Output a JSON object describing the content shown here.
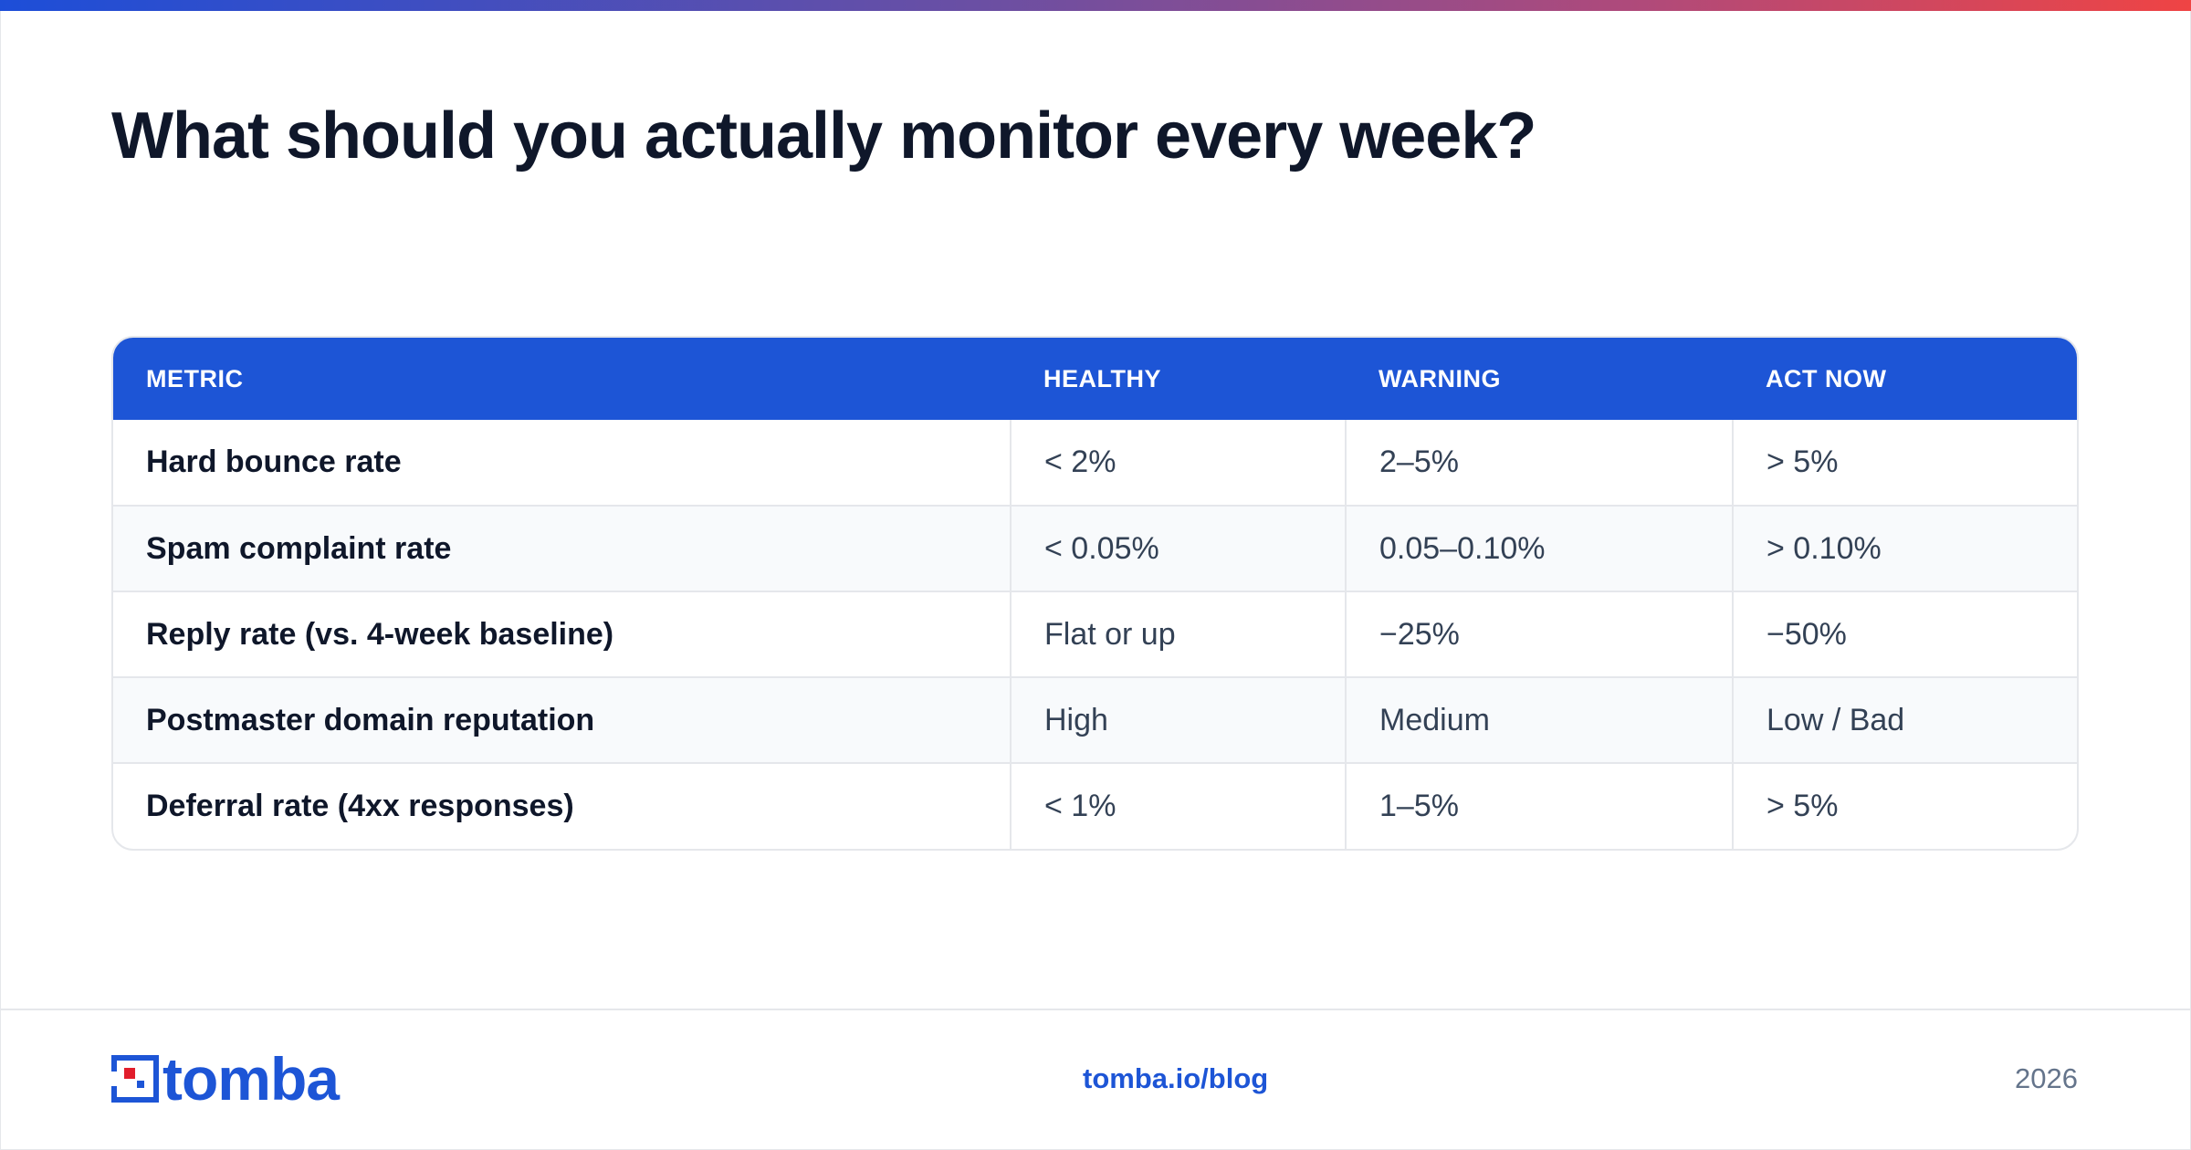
{
  "page": {
    "title": "What should you actually monitor every week?"
  },
  "table": {
    "headers": [
      "METRIC",
      "HEALTHY",
      "WARNING",
      "ACT NOW"
    ],
    "rows": [
      {
        "metric": "Hard bounce rate",
        "healthy": "< 2%",
        "warning": "2–5%",
        "act_now": "> 5%"
      },
      {
        "metric": "Spam complaint rate",
        "healthy": "< 0.05%",
        "warning": "0.05–0.10%",
        "act_now": "> 0.10%"
      },
      {
        "metric": "Reply rate (vs. 4-week baseline)",
        "healthy": "Flat or up",
        "warning": "−25%",
        "act_now": "−50%"
      },
      {
        "metric": "Postmaster domain reputation",
        "healthy": "High",
        "warning": "Medium",
        "act_now": "Low / Bad"
      },
      {
        "metric": "Deferral rate (4xx responses)",
        "healthy": "< 1%",
        "warning": "1–5%",
        "act_now": "> 5%"
      }
    ]
  },
  "footer": {
    "brand": "tomba",
    "link": "tomba.io/blog",
    "year": "2026"
  },
  "colors": {
    "accent": "#1d55d6",
    "title": "#0f172a",
    "logo_mark_red": "#e11d2b"
  },
  "icons": {
    "logo_mark": "tomba-logo-icon"
  }
}
